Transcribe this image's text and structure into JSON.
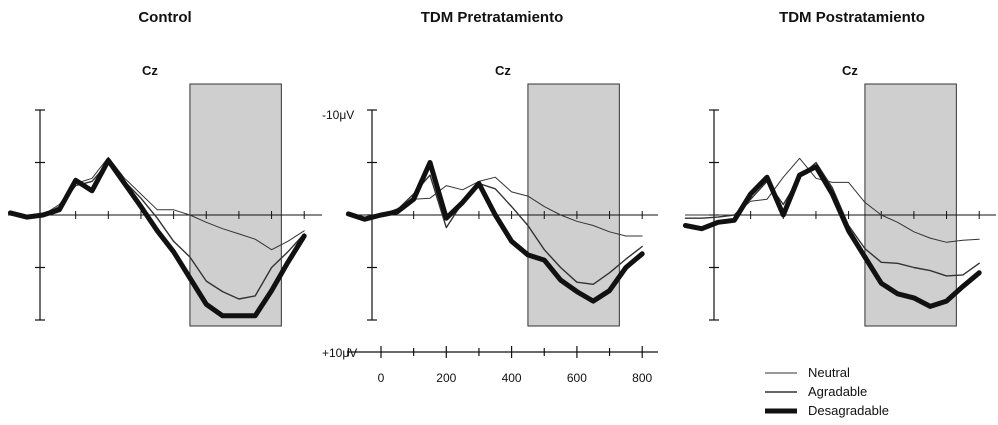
{
  "chart_data": {
    "type": "line",
    "y_axis_inverted": true,
    "x_unit": "ms",
    "x_ticks": [
      0,
      200,
      400,
      600,
      800
    ],
    "xlim": [
      -100,
      820
    ],
    "ylim": [
      -10,
      10
    ],
    "y_tick_labels": {
      "top": "-10μV",
      "bottom": "+10μV"
    },
    "shaded_window_note": "grey shaded latency window",
    "legend": {
      "position": "bottom-right",
      "items": [
        "Neutral",
        "Agradable",
        "Desagradable"
      ]
    },
    "series_styles": {
      "Neutral": {
        "color": "#333333",
        "width": 1
      },
      "Agradable": {
        "color": "#333333",
        "width": 1.4
      },
      "Desagradable": {
        "color": "#111111",
        "width": 5
      }
    },
    "panels": [
      {
        "title": "Control",
        "electrode": "Cz",
        "shaded": [
          450,
          730
        ],
        "series": [
          {
            "name": "Neutral",
            "x": [
              -100,
              -50,
              0,
              50,
              100,
              150,
              200,
              250,
              300,
              350,
              400,
              450,
              500,
              550,
              600,
              650,
              700,
              750,
              800
            ],
            "y": [
              0,
              0.2,
              0,
              -1,
              -3,
              -3.5,
              -5.5,
              -3.5,
              -2,
              -0.5,
              -0.5,
              0,
              0.7,
              1.3,
              1.8,
              2.3,
              3.3,
              2.5,
              1.5
            ]
          },
          {
            "name": "Agradable",
            "x": [
              -100,
              -50,
              0,
              50,
              100,
              150,
              200,
              250,
              300,
              350,
              400,
              450,
              500,
              550,
              600,
              650,
              700,
              750,
              800
            ],
            "y": [
              -0.2,
              0.1,
              0,
              -0.8,
              -2.8,
              -3.2,
              -5,
              -3.2,
              -1.6,
              0.3,
              2.5,
              4,
              6.3,
              7.3,
              8,
              7.7,
              5,
              3.5,
              1.8
            ]
          },
          {
            "name": "Desagradable",
            "x": [
              -100,
              -50,
              0,
              50,
              100,
              150,
              200,
              250,
              300,
              350,
              400,
              450,
              500,
              550,
              600,
              650,
              700,
              750,
              800
            ],
            "y": [
              -0.2,
              0.2,
              0,
              -0.5,
              -3.3,
              -2.3,
              -5.2,
              -3,
              -0.8,
              1.5,
              3.5,
              6,
              8.5,
              9.6,
              9.6,
              9.6,
              7.2,
              4.5,
              2
            ]
          }
        ]
      },
      {
        "title": "TDM Pretratamiento",
        "electrode": "Cz",
        "shaded": [
          450,
          730
        ],
        "series": [
          {
            "name": "Neutral",
            "x": [
              -100,
              -50,
              0,
              50,
              100,
              150,
              200,
              250,
              300,
              350,
              400,
              450,
              500,
              550,
              600,
              650,
              700,
              750,
              800
            ],
            "y": [
              0,
              0.2,
              0,
              -0.6,
              -1.5,
              -1.6,
              -2.8,
              -2.4,
              -3.2,
              -3.6,
              -2.2,
              -1.8,
              -0.8,
              0,
              0.6,
              1,
              1.6,
              2,
              2
            ]
          },
          {
            "name": "Agradable",
            "x": [
              -100,
              -50,
              0,
              50,
              100,
              150,
              200,
              250,
              300,
              350,
              400,
              450,
              500,
              550,
              600,
              650,
              700,
              750,
              800
            ],
            "y": [
              -0.2,
              0.3,
              0,
              -0.5,
              -2,
              -3.8,
              1.2,
              -1.2,
              -3,
              -2.5,
              -0.8,
              1,
              3.3,
              5,
              6.4,
              6.6,
              5.5,
              4.2,
              3
            ]
          },
          {
            "name": "Desagradable",
            "x": [
              -100,
              -50,
              0,
              50,
              100,
              150,
              200,
              250,
              300,
              350,
              400,
              450,
              500,
              550,
              600,
              650,
              700,
              750,
              800
            ],
            "y": [
              -0.1,
              0.4,
              0,
              -0.3,
              -1.5,
              -5,
              0.3,
              -1.2,
              -3,
              0,
              2.5,
              3.8,
              4.3,
              6.2,
              7.3,
              8.2,
              7.2,
              5,
              3.7
            ]
          }
        ]
      },
      {
        "title": "TDM Postratamiento",
        "electrode": "Cz",
        "shaded": [
          450,
          730
        ],
        "series": [
          {
            "name": "Neutral",
            "x": [
              -100,
              -50,
              0,
              50,
              100,
              150,
              200,
              250,
              300,
              350,
              400,
              450,
              500,
              550,
              600,
              650,
              700,
              750,
              800
            ],
            "y": [
              0,
              0,
              0,
              0,
              -1.3,
              -1.5,
              -3.6,
              -5.4,
              -3.5,
              -3.1,
              -3.1,
              -1.2,
              0,
              0.7,
              1.6,
              2.2,
              2.6,
              2.4,
              2.3
            ]
          },
          {
            "name": "Agradable",
            "x": [
              -100,
              -50,
              0,
              50,
              100,
              150,
              200,
              250,
              300,
              350,
              400,
              450,
              500,
              550,
              600,
              650,
              700,
              750,
              800
            ],
            "y": [
              0.3,
              0.3,
              0.2,
              0,
              -1.5,
              -3.2,
              -1,
              -3.6,
              -5,
              -2.6,
              1,
              3.2,
              4.5,
              4.6,
              5,
              5.3,
              5.8,
              5.7,
              4.6
            ]
          },
          {
            "name": "Desagradable",
            "x": [
              -100,
              -50,
              0,
              50,
              100,
              150,
              200,
              250,
              300,
              350,
              400,
              450,
              500,
              550,
              600,
              650,
              700,
              750,
              800
            ],
            "y": [
              1,
              1.3,
              0.7,
              0.5,
              -2,
              -3.6,
              0,
              -3.8,
              -4.6,
              -2,
              1.5,
              4,
              6.5,
              7.5,
              7.9,
              8.7,
              8.2,
              6.8,
              5.5
            ]
          }
        ]
      }
    ]
  }
}
